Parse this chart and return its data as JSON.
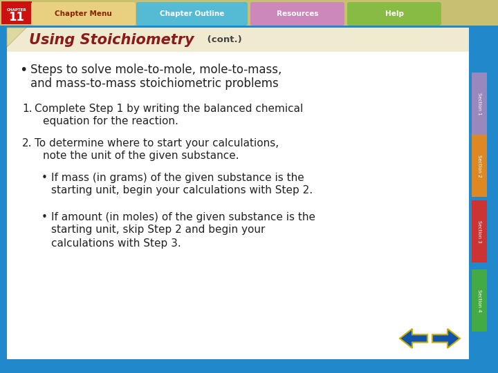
{
  "title_main": "Using Stoichiometry",
  "title_cont": " (cont.)",
  "title_bg": "#f0ead0",
  "title_color": "#8b1a1a",
  "title_cont_color": "#444444",
  "bg_color": "#ffffff",
  "outer_bg": "#2288cc",
  "nav_bar_bg": "#e8e0b0",
  "bullet1_line1": "Steps to solve mole-to-mole, mole-to-mass,",
  "bullet1_line2": "and mass-to-mass stoichiometric problems",
  "item1_num": "1.",
  "item1_line1": "Complete Step 1 by writing the balanced chemical",
  "item1_line2": "equation for the reaction.",
  "item2_num": "2.",
  "item2_line1": "To determine where to start your calculations,",
  "item2_line2": "note the unit of the given substance.",
  "sub1_line1": "If mass (in grams) of the given substance is the",
  "sub1_line2": "starting unit, begin your calculations with Step 2.",
  "sub2_line1": "If amount (in moles) of the given substance is the",
  "sub2_line2": "starting unit, skip Step 2 and begin your",
  "sub2_line3": "calculations with Step 3.",
  "tab_labels": [
    "Chapter Menu",
    "Chapter Outline",
    "Resources",
    "Help"
  ],
  "tab_bg_colors": [
    "#e8d890",
    "#58bbd0",
    "#cc88bb",
    "#88bb44"
  ],
  "tab_text_colors": [
    "#882200",
    "#ffffff",
    "#ffffff",
    "#ffffff"
  ],
  "chapter_num": "11",
  "chapter_bg": "#cc1111",
  "section_labels": [
    "Section 1",
    "Section 2",
    "Section 3",
    "Section 4"
  ],
  "section_colors": [
    "#9988bb",
    "#dd8822",
    "#cc3333",
    "#44aa44"
  ],
  "nav_arrow_color": "#1155aa",
  "nav_arrow_border": "#ccaa00",
  "corner_fold_color": "#ddd8a0"
}
